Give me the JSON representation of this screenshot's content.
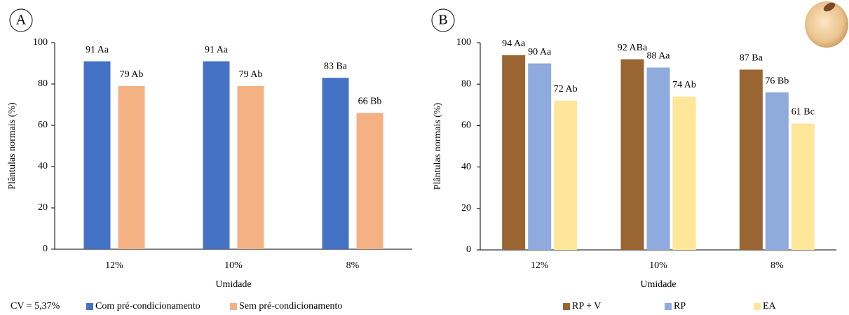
{
  "chart_data": [
    {
      "type": "bar",
      "panel_label": "A",
      "categories": [
        "12%",
        "10%",
        "8%"
      ],
      "series": [
        {
          "name": "Com pré-condicionamento",
          "color": "#4472c4",
          "values": [
            91,
            91,
            83
          ],
          "value_labels": [
            "91 Aa",
            "91 Aa",
            "83 Ba"
          ]
        },
        {
          "name": "Sem pré-condicionamento",
          "color": "#f4b183",
          "values": [
            79,
            79,
            66
          ],
          "value_labels": [
            "79 Ab",
            "79 Ab",
            "66 Bb"
          ]
        }
      ],
      "ylim": [
        0,
        100
      ],
      "yticks": [
        0,
        20,
        40,
        60,
        80,
        100
      ],
      "xlabel": "Umidade",
      "ylabel": "Plântulas normais (%)",
      "note": "CV = 5,37%"
    },
    {
      "type": "bar",
      "panel_label": "B",
      "categories": [
        "12%",
        "10%",
        "8%"
      ],
      "series": [
        {
          "name": "RP + V",
          "color": "#996633",
          "values": [
            94,
            92,
            87
          ],
          "value_labels": [
            "94 Aa",
            "92 ABa",
            "87 Ba"
          ]
        },
        {
          "name": "RP",
          "color": "#8faadc",
          "values": [
            90,
            88,
            76
          ],
          "value_labels": [
            "90 Aa",
            "88 Aa",
            "76 Bb"
          ]
        },
        {
          "name": "EA",
          "color": "#ffe699",
          "values": [
            72,
            74,
            61
          ],
          "value_labels": [
            "72 Ab",
            "74 Ab",
            "61 Bc"
          ]
        }
      ],
      "ylim": [
        0,
        100
      ],
      "yticks": [
        0,
        20,
        40,
        60,
        80,
        100
      ],
      "xlabel": "Umidade",
      "ylabel": "Plântulas normais (%)"
    }
  ]
}
